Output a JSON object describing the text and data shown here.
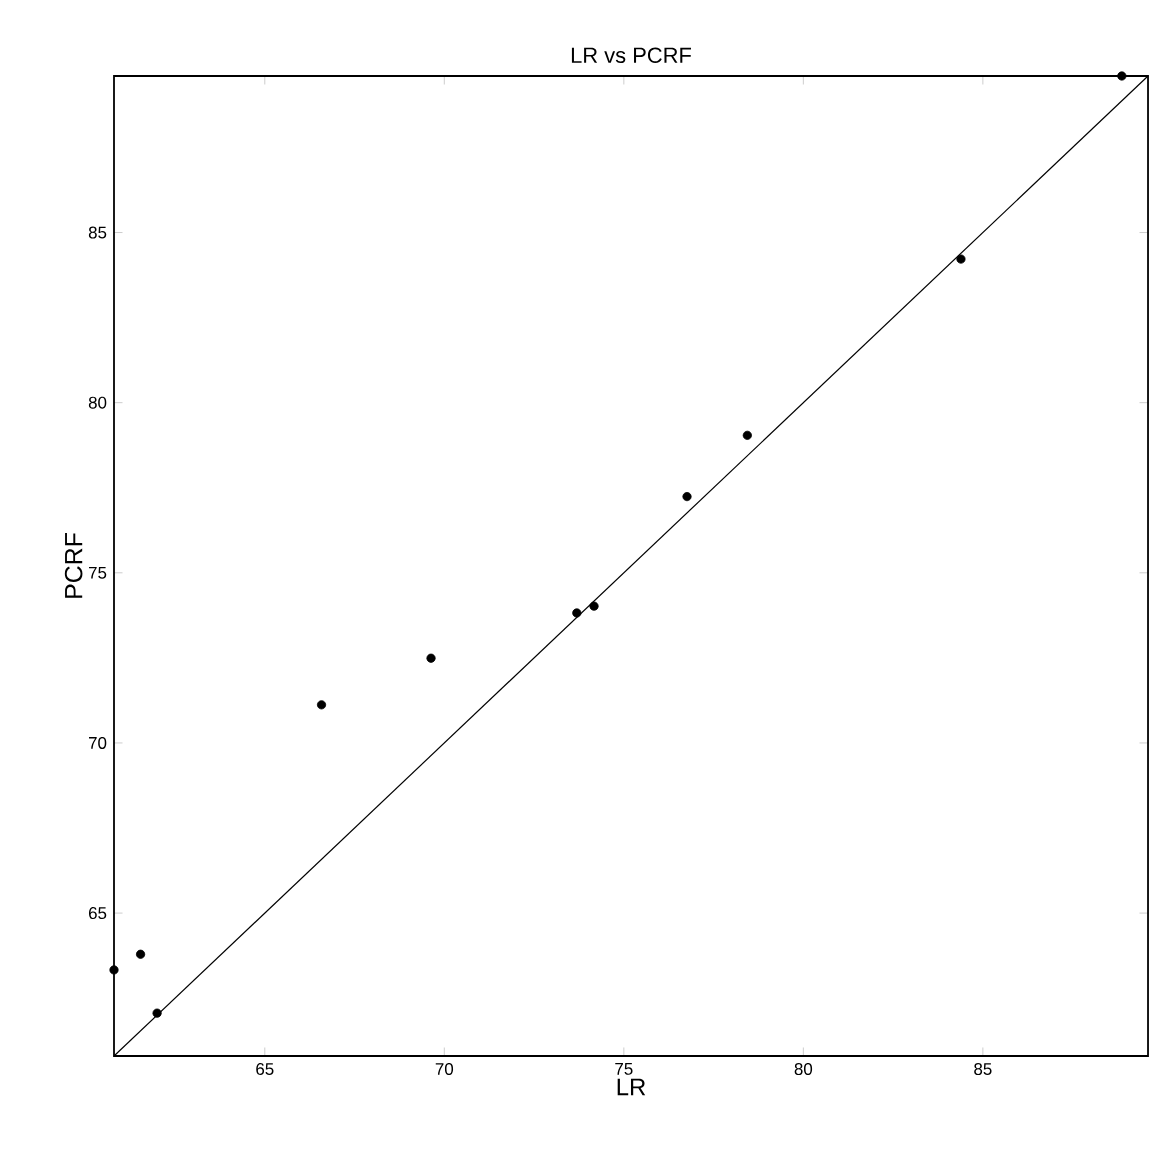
{
  "chart_data": {
    "type": "scatter",
    "title": "LR vs PCRF",
    "xlabel": "LR",
    "ylabel": "PCRF",
    "xlim": [
      60.8,
      89.6
    ],
    "ylim": [
      60.8,
      89.6
    ],
    "xticks": [
      65,
      70,
      75,
      80,
      85
    ],
    "yticks": [
      65,
      70,
      75,
      80,
      85
    ],
    "marker": "circle",
    "series": [
      {
        "color": "#000000",
        "x": [
          60.8,
          61.54,
          62.0,
          66.58,
          69.63,
          73.69,
          74.17,
          76.76,
          78.44,
          84.39,
          88.87
        ],
        "values": [
          63.33,
          63.79,
          62.06,
          71.12,
          72.49,
          73.82,
          74.02,
          77.24,
          79.04,
          84.22,
          89.6
        ]
      },
      {
        "type": "line",
        "color": "#000000",
        "marker": "none",
        "line_style": "solid",
        "x": [
          60.8,
          89.6
        ],
        "values": [
          60.8,
          89.6
        ]
      }
    ]
  }
}
